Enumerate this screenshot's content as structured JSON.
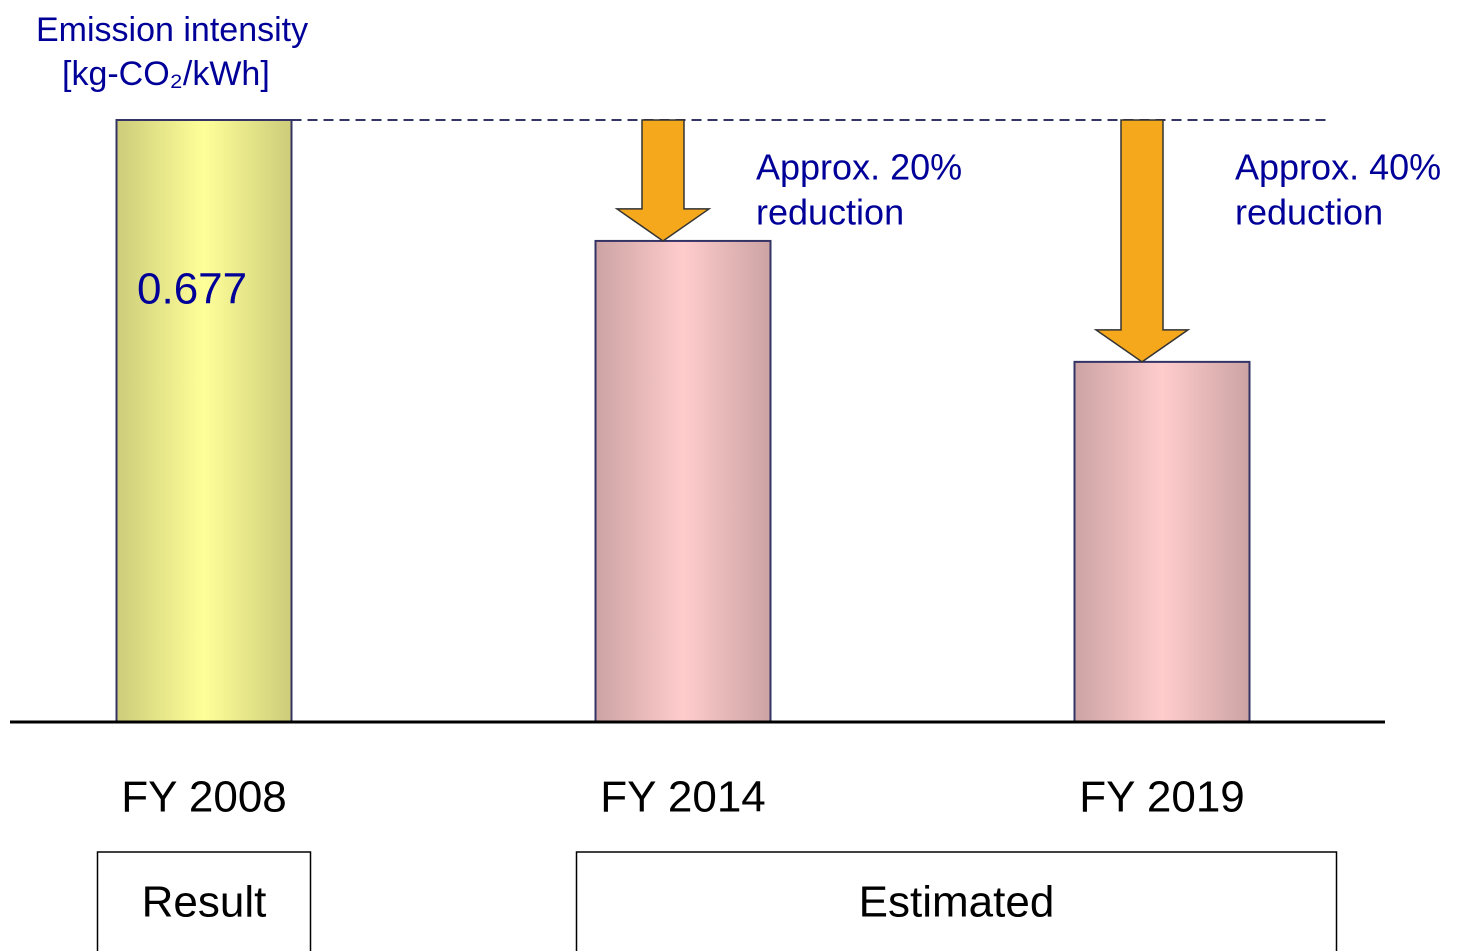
{
  "chart_data": {
    "type": "bar",
    "title": "Emission intensity",
    "unit": "[kg-CO₂/kWh]",
    "categories": [
      "FY 2008",
      "FY 2014",
      "FY 2019"
    ],
    "values": [
      0.677,
      0.541,
      0.405
    ],
    "value_labels": [
      "0.677",
      null,
      null
    ],
    "colors": [
      "#ffff99",
      "#ffcccc",
      "#ffcccc"
    ],
    "ylim": [
      0,
      0.677
    ],
    "annotations": [
      null,
      [
        "Approx. 20%",
        "reduction"
      ],
      [
        "Approx. 40%",
        "reduction"
      ]
    ],
    "groups": [
      {
        "label": "Result",
        "from": 0,
        "to": 0
      },
      {
        "label": "Estimated",
        "from": 1,
        "to": 2
      }
    ]
  }
}
